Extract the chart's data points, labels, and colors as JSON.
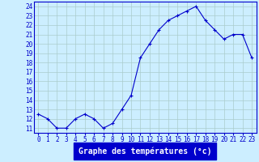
{
  "hours": [
    0,
    1,
    2,
    3,
    4,
    5,
    6,
    7,
    8,
    9,
    10,
    11,
    12,
    13,
    14,
    15,
    16,
    17,
    18,
    19,
    20,
    21,
    22,
    23
  ],
  "temps": [
    12.5,
    12.0,
    11.0,
    11.0,
    12.0,
    12.5,
    12.0,
    11.0,
    11.5,
    13.0,
    14.5,
    18.5,
    20.0,
    21.5,
    22.5,
    23.0,
    23.5,
    24.0,
    22.5,
    21.5,
    20.5,
    21.0,
    21.0,
    18.5
  ],
  "line_color": "#0000cc",
  "marker": "+",
  "bg_color": "#cceeff",
  "grid_color": "#aacccc",
  "xlabel": "Graphe des températures (°c)",
  "xlabel_bg": "#0000cc",
  "xlabel_fg": "#ffffff",
  "ylim": [
    10.5,
    24.5
  ],
  "yticks": [
    11,
    12,
    13,
    14,
    15,
    16,
    17,
    18,
    19,
    20,
    21,
    22,
    23,
    24
  ],
  "xticks": [
    0,
    1,
    2,
    3,
    4,
    5,
    6,
    7,
    8,
    9,
    10,
    11,
    12,
    13,
    14,
    15,
    16,
    17,
    18,
    19,
    20,
    21,
    22,
    23
  ],
  "tick_fontsize": 5.5,
  "label_fontsize": 7,
  "spine_color": "#0000cc"
}
